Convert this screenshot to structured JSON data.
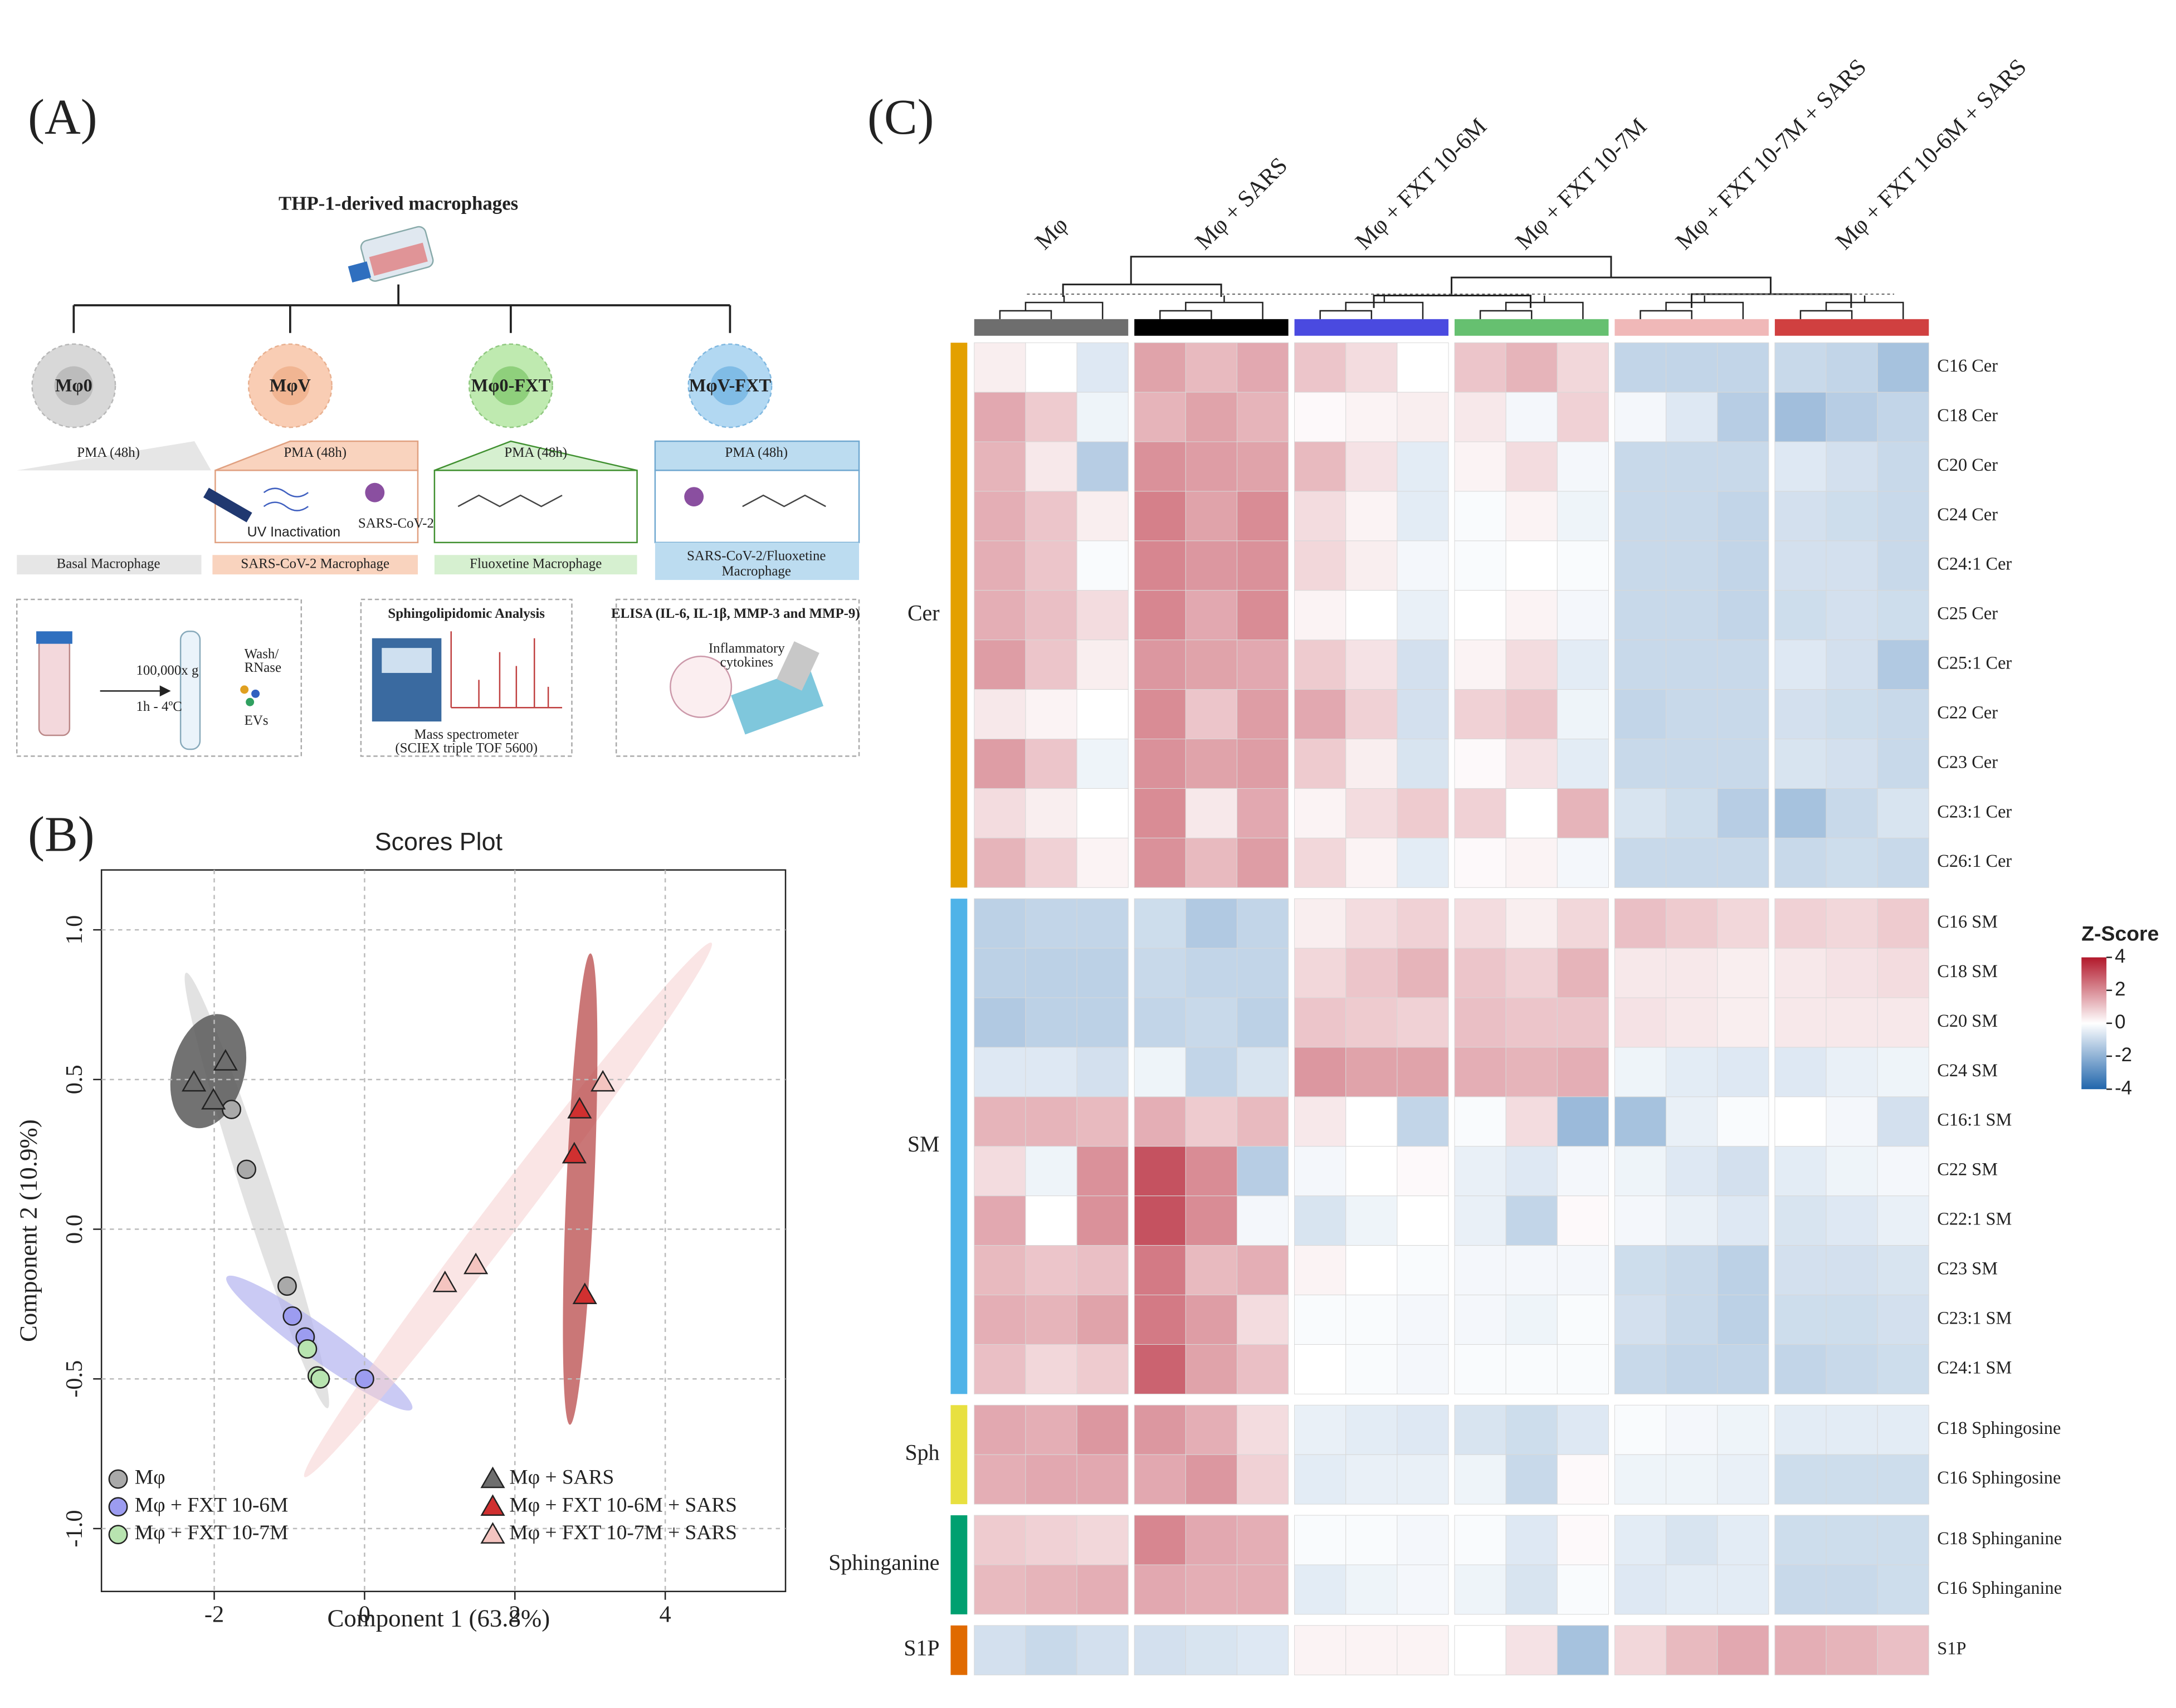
{
  "panel_labels": [
    "(A)",
    "(B)",
    "(C)"
  ],
  "diagram": {
    "title": "THP-1-derived macrophages",
    "groups": [
      {
        "label": "Mφ0",
        "treatment": "PMA (48h)",
        "name_lines": [
          "Basal Macrophage"
        ]
      },
      {
        "label": "MφV",
        "treatment": "PMA (48h)",
        "name_lines": [
          "SARS-CoV-2 Macrophage"
        ]
      },
      {
        "label": "Mφ0-FXT",
        "treatment": "PMA (48h)",
        "name_lines": [
          "Fluoxetine Macrophage"
        ]
      },
      {
        "label": "MφV-FXT",
        "treatment": "PMA (48h)",
        "name_lines": [
          "SARS-CoV-2/Fluoxetine",
          "Macrophage"
        ]
      }
    ],
    "uv": "UV Inactivation",
    "virus": "SARS-CoV-2",
    "ev": {
      "speed": "100,000x g",
      "time": "1h - 4ºC",
      "wash_lines": [
        "Wash/",
        "RNase"
      ],
      "product": "EVs"
    },
    "ms": {
      "title": "Sphingolipidomic Analysis",
      "lines": [
        "Mass spectrometer",
        "(SCIEX triple TOF 5600)"
      ]
    },
    "elisa": {
      "title": "ELISA (IL-6, IL-1β, MMP-3 and MMP-9)",
      "lines": [
        "Inflammatory",
        "cytokines"
      ]
    }
  },
  "chart_data": [
    {
      "type": "scatter",
      "title": "Scores Plot",
      "xlabel": "Component 1 (63.8%)",
      "ylabel": "Component 2 (10.9%)",
      "xlim": [
        -3.5,
        5.6
      ],
      "ylim": [
        -1.21,
        1.2
      ],
      "xticks": [
        -2,
        0,
        2,
        4
      ],
      "yticks": [
        {
          "value": -1.0,
          "label": "-1.0"
        },
        -0.5,
        {
          "value": 0.0,
          "label": "0.0"
        },
        0.5,
        {
          "value": 1.0,
          "label": "1.0"
        }
      ],
      "grid": true,
      "legend": "bottom",
      "series": [
        {
          "name": "Mφ",
          "color": "#a9a9a9",
          "marker": "circle",
          "x": [
            -1.77,
            -1.57,
            -1.03
          ],
          "values": [
            0.4,
            0.2,
            -0.19
          ]
        },
        {
          "name": "Mφ + FXT 10-6M",
          "color": "#9c9cf0",
          "marker": "circle",
          "x": [
            -0.96,
            -0.79,
            0
          ],
          "values": [
            -0.29,
            -0.36,
            -0.5
          ]
        },
        {
          "name": "Mφ + FXT 10-7M",
          "color": "#b8e4b0",
          "marker": "circle",
          "x": [
            -0.76,
            -0.63,
            -0.59
          ],
          "values": [
            -0.4,
            -0.49,
            -0.5
          ]
        },
        {
          "name": "Mφ + SARS",
          "color": "#6e6e6e",
          "marker": "triangle",
          "x": [
            -2.27,
            -1.85,
            -2.01
          ],
          "values": [
            0.49,
            0.56,
            0.43
          ]
        },
        {
          "name": "Mφ + FXT 10-6M + SARS",
          "color": "#d03030",
          "marker": "triangle",
          "x": [
            2.86,
            2.79,
            2.93
          ],
          "values": [
            0.4,
            0.25,
            -0.22
          ]
        },
        {
          "name": "Mφ + FXT 10-7M + SARS",
          "color": "#f4c4c0",
          "marker": "triangle",
          "x": [
            3.17,
            1.07,
            1.48
          ],
          "values": [
            0.49,
            -0.18,
            -0.12
          ]
        }
      ]
    },
    {
      "type": "heatmap",
      "legend_title": "Z-Score",
      "zlim": [
        -4,
        4
      ],
      "zticks": [
        4,
        2,
        0,
        -2,
        -4
      ],
      "cmap": [
        "#2166ac",
        "#ffffff",
        "#b2182b"
      ],
      "columns": [
        "Mφ",
        "Mφ + SARS",
        "Mφ + FXT 10-6M",
        "Mφ + FXT 10-7M",
        "Mφ + FXT 10-7M + SARS",
        "Mφ + FXT 10-6M + SARS"
      ],
      "column_colors": [
        "#6e6e6e",
        "#000000",
        "#4a4ae0",
        "#66c070",
        "#f0b8b8",
        "#d04040"
      ],
      "row_groups": [
        {
          "name": "Cer",
          "color": "#e3a000",
          "rows": [
            "C16 Cer",
            "C18 Cer",
            "C20 Cer",
            "C24 Cer",
            "C24:1 Cer",
            "C25 Cer",
            "C25:1 Cer",
            "C22 Cer",
            "C23 Cer",
            "C23:1 Cer",
            "C26:1 Cer"
          ],
          "values": [
            [
              0.3,
              0,
              -0.6,
              1.6,
              1.2,
              1.5,
              1.0,
              0.6,
              0,
              1.0,
              1.3,
              0.7,
              -1.1,
              -1.1,
              -1.1,
              -1.0,
              -1.1,
              -1.6
            ],
            [
              1.5,
              0.9,
              -0.3,
              1.3,
              1.6,
              1.3,
              0.1,
              0.2,
              0.3,
              0.4,
              -0.2,
              0.8,
              -0.2,
              -0.6,
              -1.3,
              -1.7,
              -1.3,
              -1.1
            ],
            [
              1.3,
              0.4,
              -1.3,
              1.9,
              1.7,
              1.6,
              1.2,
              0.5,
              -0.5,
              0.2,
              0.6,
              -0.2,
              -1.0,
              -1.0,
              -1.0,
              -0.6,
              -0.8,
              -1.0
            ],
            [
              1.4,
              1.0,
              0.3,
              2.2,
              1.6,
              2.0,
              0.6,
              0.2,
              -0.5,
              -0.1,
              0.2,
              -0.3,
              -1.0,
              -1.0,
              -1.1,
              -0.8,
              -0.9,
              -1.0
            ],
            [
              1.4,
              1.0,
              -0.1,
              2.1,
              1.8,
              1.9,
              0.7,
              0.3,
              -0.2,
              -0.1,
              0,
              -0.1,
              -1.0,
              -1.0,
              -1.1,
              -0.8,
              -0.8,
              -1.0
            ],
            [
              1.4,
              1.1,
              0.6,
              2.1,
              1.5,
              2.0,
              0.2,
              0,
              -0.4,
              0,
              0.2,
              -0.2,
              -1.0,
              -1.0,
              -1.1,
              -0.9,
              -0.8,
              -0.9
            ],
            [
              1.7,
              1.0,
              0.3,
              1.8,
              1.6,
              1.5,
              0.9,
              0.5,
              -0.8,
              0.2,
              0.6,
              -0.5,
              -1.0,
              -1.0,
              -1.0,
              -0.6,
              -0.8,
              -1.4
            ],
            [
              0.4,
              0.2,
              0,
              2.0,
              1.0,
              1.7,
              1.5,
              0.8,
              -0.8,
              0.8,
              1.0,
              -0.3,
              -1.1,
              -1.0,
              -1.0,
              -0.8,
              -0.9,
              -1.0
            ],
            [
              1.7,
              1.0,
              -0.3,
              1.9,
              1.6,
              1.7,
              0.9,
              0.3,
              -0.7,
              0.1,
              0.5,
              -0.5,
              -1.0,
              -1.0,
              -1.0,
              -0.7,
              -0.8,
              -1.0
            ],
            [
              0.6,
              0.3,
              0,
              2.0,
              0.4,
              1.5,
              0.2,
              0.6,
              0.9,
              0.8,
              0,
              1.3,
              -0.7,
              -0.9,
              -1.3,
              -1.6,
              -1.0,
              -0.7
            ],
            [
              1.3,
              0.8,
              0.2,
              1.9,
              1.2,
              1.7,
              0.7,
              0.2,
              -0.5,
              0.1,
              0.2,
              -0.2,
              -1.0,
              -1.0,
              -1.0,
              -1.0,
              -0.9,
              -1.0
            ]
          ]
        },
        {
          "name": "SM",
          "color": "#4fb3e8",
          "rows": [
            "C16 SM",
            "C18 SM",
            "C20 SM",
            "C24 SM",
            "C16:1 SM",
            "C22 SM",
            "C22:1 SM",
            "C23 SM",
            "C23:1 SM",
            "C24:1 SM"
          ],
          "values": [
            [
              -1.2,
              -1.1,
              -1.1,
              -0.9,
              -1.4,
              -1.1,
              0.3,
              0.6,
              0.8,
              0.6,
              0.3,
              0.7,
              1.1,
              0.9,
              0.7,
              0.8,
              0.7,
              0.9
            ],
            [
              -1.2,
              -1.2,
              -1.2,
              -1.0,
              -1.1,
              -1.1,
              0.7,
              1.0,
              1.3,
              1.0,
              0.8,
              1.3,
              0.4,
              0.4,
              0.3,
              0.4,
              0.5,
              0.6
            ],
            [
              -1.4,
              -1.2,
              -1.2,
              -1.1,
              -1.0,
              -1.2,
              1.0,
              0.9,
              0.8,
              1.1,
              1.0,
              1.0,
              0.5,
              0.4,
              0.3,
              0.4,
              0.4,
              0.4
            ],
            [
              -0.6,
              -0.6,
              -0.8,
              -0.3,
              -1.1,
              -0.7,
              1.8,
              1.6,
              1.6,
              1.4,
              1.3,
              1.4,
              -0.3,
              -0.5,
              -0.6,
              -0.6,
              -0.4,
              -0.3
            ],
            [
              1.3,
              1.3,
              1.2,
              1.4,
              0.9,
              1.2,
              0.4,
              0,
              -1.1,
              -0.1,
              0.6,
              -1.8,
              -1.6,
              -0.4,
              -0.1,
              0,
              -0.2,
              -0.8
            ],
            [
              0.6,
              -0.3,
              1.9,
              3.0,
              2.0,
              -1.3,
              -0.2,
              0,
              0.1,
              -0.4,
              -0.6,
              -0.2,
              -0.3,
              -0.6,
              -0.8,
              -0.5,
              -0.3,
              -0.2
            ],
            [
              1.5,
              0,
              1.9,
              3.0,
              2.0,
              -0.2,
              -0.7,
              -0.3,
              0,
              -0.4,
              -1.1,
              0.1,
              -0.2,
              -0.4,
              -0.6,
              -0.7,
              -0.6,
              -0.4
            ],
            [
              1.2,
              1.0,
              1.1,
              2.3,
              1.2,
              1.4,
              0.2,
              0,
              -0.1,
              -0.2,
              -0.2,
              -0.2,
              -0.9,
              -1.0,
              -1.2,
              -0.8,
              -0.8,
              -0.7
            ],
            [
              1.4,
              1.3,
              1.6,
              2.3,
              1.7,
              0.6,
              -0.1,
              -0.1,
              -0.2,
              -0.2,
              -0.3,
              -0.1,
              -0.8,
              -1.0,
              -1.2,
              -0.9,
              -0.9,
              -0.8
            ],
            [
              1.1,
              0.7,
              0.9,
              2.7,
              1.6,
              1.1,
              0,
              -0.1,
              -0.2,
              -0.1,
              -0.1,
              -0.1,
              -1.0,
              -1.1,
              -1.1,
              -1.1,
              -1.0,
              -0.9
            ]
          ]
        },
        {
          "name": "Sph",
          "color": "#e8e040",
          "rows": [
            "C18 Sphingosine",
            "C16 Sphingosine"
          ],
          "values": [
            [
              1.5,
              1.4,
              1.8,
              1.8,
              1.4,
              0.6,
              -0.4,
              -0.5,
              -0.6,
              -0.7,
              -0.9,
              -0.6,
              -0.1,
              -0.2,
              -0.3,
              -0.5,
              -0.5,
              -0.5
            ],
            [
              1.4,
              1.5,
              1.5,
              1.5,
              1.8,
              0.8,
              -0.5,
              -0.4,
              -0.4,
              -0.3,
              -1.0,
              0.1,
              -0.3,
              -0.3,
              -0.4,
              -0.9,
              -0.9,
              -0.9
            ]
          ]
        },
        {
          "name": "Sphinganine",
          "color": "#00a070",
          "rows": [
            "C18 Sphinganine",
            "C16 Sphinganine"
          ],
          "values": [
            [
              0.9,
              0.8,
              0.7,
              2.1,
              1.5,
              1.4,
              -0.1,
              -0.1,
              -0.2,
              -0.1,
              -0.6,
              0.1,
              -0.5,
              -0.7,
              -0.5,
              -0.9,
              -0.9,
              -0.9
            ],
            [
              1.2,
              1.3,
              1.4,
              1.5,
              1.4,
              1.4,
              -0.5,
              -0.3,
              -0.2,
              -0.3,
              -0.7,
              -0.1,
              -0.6,
              -0.5,
              -0.5,
              -1.0,
              -1.0,
              -0.9
            ]
          ]
        },
        {
          "name": "S1P",
          "color": "#e06a00",
          "rows": [
            "S1P"
          ],
          "values": [
            [
              -0.8,
              -1.0,
              -0.8,
              -0.8,
              -0.7,
              -0.6,
              0.2,
              0.2,
              0.2,
              0,
              0.5,
              -1.6,
              0.7,
              1.2,
              1.5,
              1.4,
              1.3,
              1.1
            ]
          ]
        }
      ]
    }
  ]
}
